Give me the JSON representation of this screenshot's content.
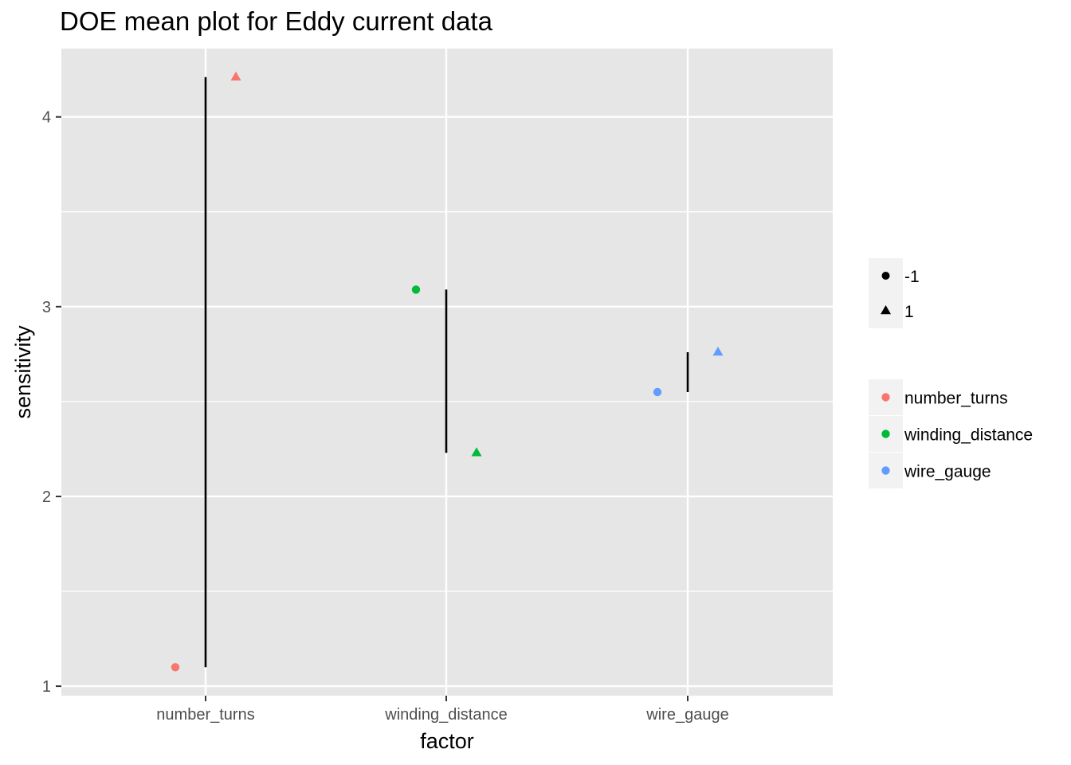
{
  "chart_data": {
    "type": "scatter",
    "title": "DOE mean plot for Eddy current data",
    "xlabel": "factor",
    "ylabel": "sensitivity",
    "categories": [
      "number_turns",
      "winding_distance",
      "wire_gauge"
    ],
    "ylim": [
      0.95,
      4.36
    ],
    "yticks": [
      1,
      2,
      3,
      4
    ],
    "grid": true,
    "legend_position": "right",
    "points": [
      {
        "factor": "number_turns",
        "level": "-1",
        "value": 1.1
      },
      {
        "factor": "number_turns",
        "level": "1",
        "value": 4.21
      },
      {
        "factor": "winding_distance",
        "level": "-1",
        "value": 3.09
      },
      {
        "factor": "winding_distance",
        "level": "1",
        "value": 2.23
      },
      {
        "factor": "wire_gauge",
        "level": "-1",
        "value": 2.55
      },
      {
        "factor": "wire_gauge",
        "level": "1",
        "value": 2.76
      }
    ],
    "effect_segments": [
      {
        "factor": "number_turns",
        "from": 1.1,
        "to": 4.21
      },
      {
        "factor": "winding_distance",
        "from": 2.23,
        "to": 3.09
      },
      {
        "factor": "wire_gauge",
        "from": 2.55,
        "to": 2.76
      }
    ],
    "legend_shape": {
      "entries": [
        {
          "label": "-1",
          "shape": "circle"
        },
        {
          "label": "1",
          "shape": "triangle"
        }
      ]
    },
    "legend_color": {
      "entries": [
        {
          "label": "number_turns",
          "color": "#F8766D"
        },
        {
          "label": "winding_distance",
          "color": "#00BA38"
        },
        {
          "label": "wire_gauge",
          "color": "#619CFF"
        }
      ]
    },
    "colors": {
      "panel_background": "#E6E6E6",
      "grid": "#FFFFFF",
      "segment": "#000000",
      "text": "#000000",
      "tick_text": "#4D4D4D",
      "legend_key_background": "#F2F2F2"
    }
  }
}
